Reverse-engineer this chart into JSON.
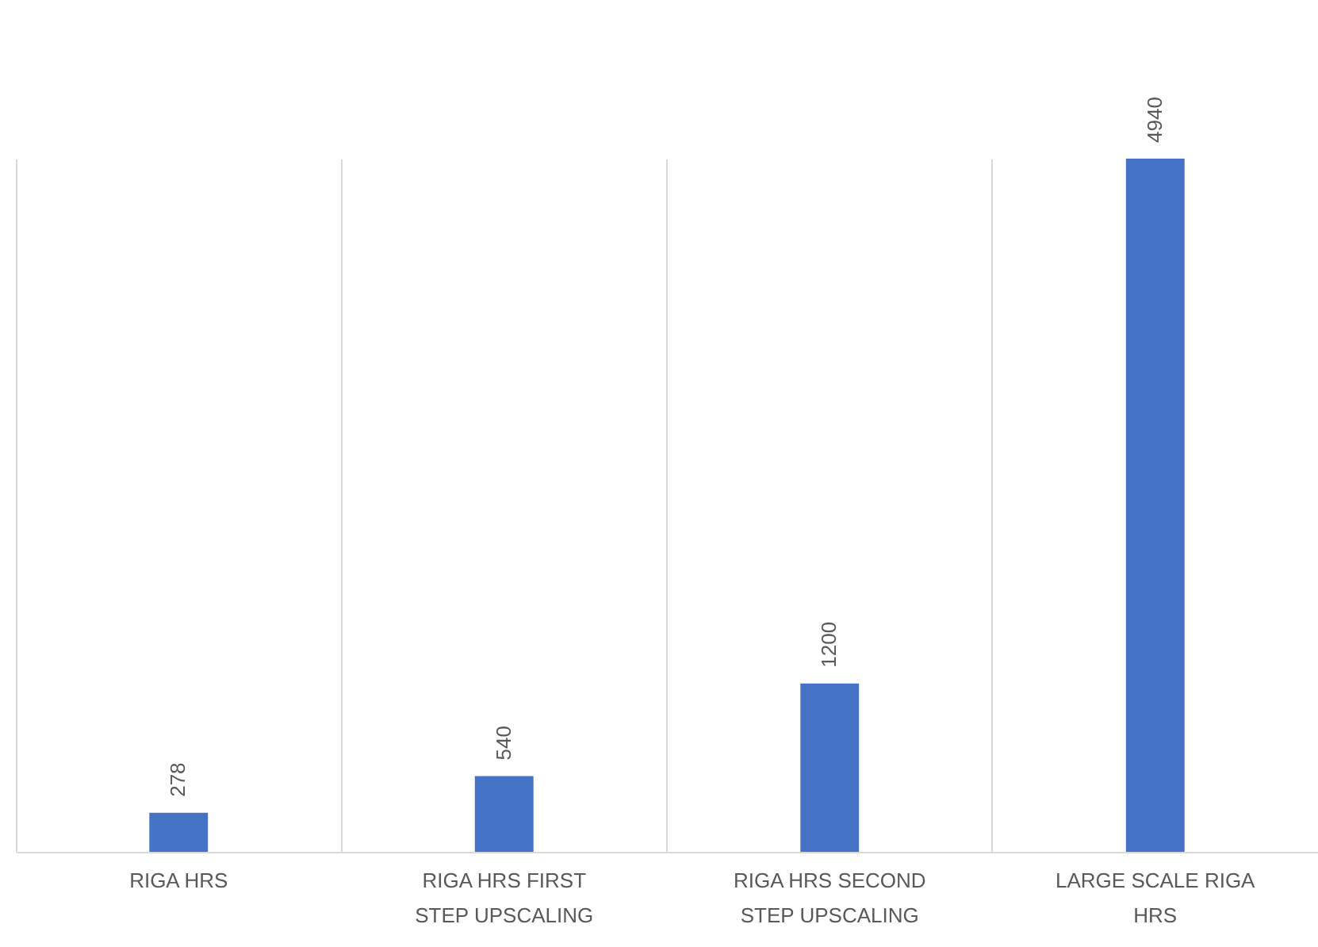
{
  "chart_data": {
    "type": "bar",
    "categories": [
      "RIGA HRS",
      "RIGA HRS FIRST STEP UPSCALING",
      "RIGA HRS SECOND STEP UPSCALING",
      "LARGE SCALE RIGA HRS"
    ],
    "values": [
      278,
      540,
      1200,
      4940
    ],
    "color": "#4472c4",
    "data_labels": true,
    "grid": "x"
  }
}
